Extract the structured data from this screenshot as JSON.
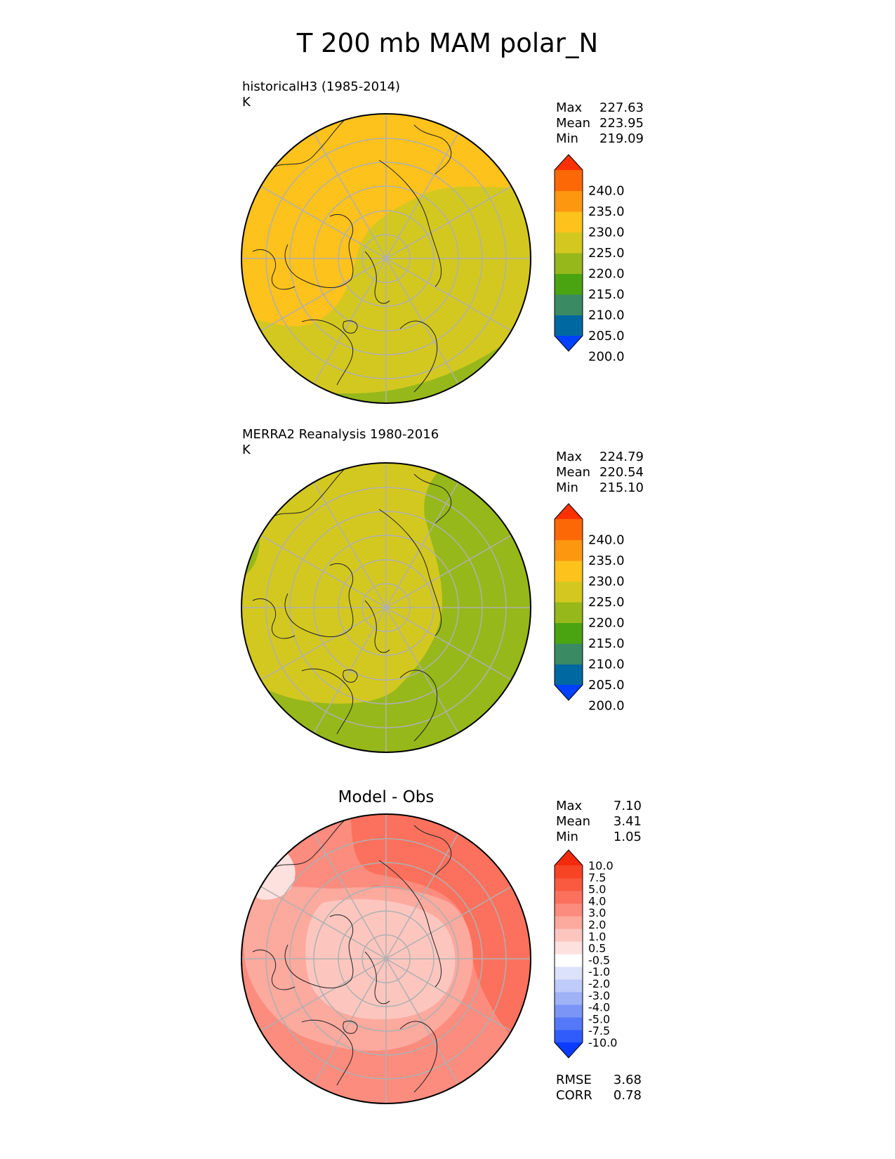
{
  "title": "T 200 mb MAM polar_N",
  "colors": {
    "abs": [
      "#0040ff",
      "#0068a0",
      "#3a8a64",
      "#4aa310",
      "#96b81a",
      "#d3c820",
      "#fdc21c",
      "#fd9710",
      "#fd6806",
      "#fd3000"
    ],
    "diff": [
      "#0a3cff",
      "#2f5cfb",
      "#5478f7",
      "#7a95f5",
      "#9fb2f6",
      "#bfcbf8",
      "#dbe2fa",
      "#ffffff",
      "#fde1de",
      "#fcc6bf",
      "#fca99e",
      "#fb8c7e",
      "#fb715d",
      "#f95a40",
      "#f64425",
      "#f42a0c"
    ]
  },
  "panels": [
    {
      "label_line1": "historicalH3 (1985-2014)",
      "label_line2": "K",
      "stats": {
        "max_label": "Max",
        "max": "227.63",
        "mean_label": "Mean",
        "mean": "223.95",
        "min_label": "Min",
        "min": "219.09"
      },
      "colorbar_ticks": [
        "240.0",
        "235.0",
        "230.0",
        "225.0",
        "220.0",
        "215.0",
        "210.0",
        "205.0",
        "200.0"
      ]
    },
    {
      "label_line1": "MERRA2 Reanalysis 1980-2016",
      "label_line2": "K",
      "stats": {
        "max_label": "Max",
        "max": "224.79",
        "mean_label": "Mean",
        "mean": "220.54",
        "min_label": "Min",
        "min": "215.10"
      },
      "colorbar_ticks": [
        "240.0",
        "235.0",
        "230.0",
        "225.0",
        "220.0",
        "215.0",
        "210.0",
        "205.0",
        "200.0"
      ]
    },
    {
      "center_title": "Model - Obs",
      "stats": {
        "max_label": "Max",
        "max": "7.10",
        "mean_label": "Mean",
        "mean": "3.41",
        "min_label": "Min",
        "min": "1.05"
      },
      "colorbar_ticks": [
        "10.0",
        "7.5",
        "5.0",
        "4.0",
        "3.0",
        "2.0",
        "1.0",
        "0.5",
        "-0.5",
        "-1.0",
        "-2.0",
        "-3.0",
        "-4.0",
        "-5.0",
        "-7.5",
        "-10.0"
      ],
      "metrics": {
        "rmse_label": "RMSE",
        "rmse": "3.68",
        "corr_label": "CORR",
        "corr": "0.78"
      }
    }
  ]
}
